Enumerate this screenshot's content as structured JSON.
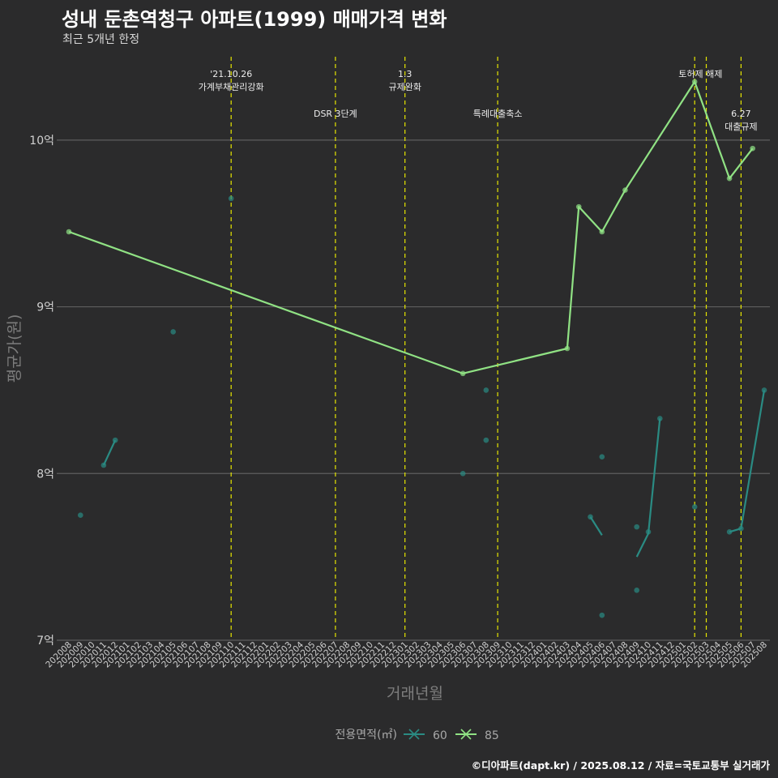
{
  "title": "성내 둔촌역청구 아파트(1999) 매매가격 변화",
  "subtitle": "최근 5개년 한정",
  "footer": "©디아파트(dapt.kr) / 2025.08.12 / 자료=국토교통부 실거래가",
  "chart_data": {
    "type": "line",
    "xlabel": "거래년월",
    "ylabel": "평균가(원)",
    "ylim": [
      7,
      10.5
    ],
    "yticks": [
      {
        "value": 7,
        "label": "7억"
      },
      {
        "value": 8,
        "label": "8억"
      },
      {
        "value": 9,
        "label": "9억"
      },
      {
        "value": 10,
        "label": "10억"
      }
    ],
    "x_start": "2020-08",
    "x_end": "2025-08",
    "categories": [
      "202008",
      "202009",
      "202010",
      "202011",
      "202012",
      "202101",
      "202102",
      "202103",
      "202104",
      "202105",
      "202106",
      "202107",
      "202108",
      "202109",
      "202110",
      "202111",
      "202112",
      "202201",
      "202202",
      "202203",
      "202204",
      "202205",
      "202206",
      "202207",
      "202208",
      "202209",
      "202210",
      "202211",
      "202212",
      "202301",
      "202302",
      "202303",
      "202304",
      "202305",
      "202306",
      "202307",
      "202308",
      "202309",
      "202310",
      "202311",
      "202312",
      "202401",
      "202402",
      "202403",
      "202404",
      "202405",
      "202406",
      "202407",
      "202408",
      "202409",
      "202410",
      "202411",
      "202412",
      "202501",
      "202502",
      "202503",
      "202504",
      "202505",
      "202506",
      "202507",
      "202508"
    ],
    "legend_title": "전용면적(㎡)",
    "legend_position": "bottom",
    "grid": true,
    "series": [
      {
        "name": "60",
        "color": "#2a8b83",
        "lines": [
          [
            [
              "2020-11",
              8.05
            ],
            [
              "2020-12",
              8.2
            ]
          ],
          [
            [
              "2024-05",
              7.74
            ],
            [
              "2024-06",
              7.63
            ]
          ],
          [
            [
              "2024-09",
              7.5
            ],
            [
              "2024-10",
              7.64
            ],
            [
              "2024-11",
              8.33
            ]
          ],
          [
            [
              "2025-05",
              7.65
            ],
            [
              "2025-06",
              7.67
            ],
            [
              "2025-08",
              8.5
            ]
          ]
        ],
        "points": [
          [
            "2020-09",
            7.75
          ],
          [
            "2020-11",
            8.05
          ],
          [
            "2020-12",
            8.2
          ],
          [
            "2021-05",
            8.85
          ],
          [
            "2021-10",
            9.65
          ],
          [
            "2023-06",
            8.0
          ],
          [
            "2023-08",
            8.5
          ],
          [
            "2023-08",
            8.2
          ],
          [
            "2024-05",
            7.74
          ],
          [
            "2024-06",
            8.1
          ],
          [
            "2024-06",
            7.15
          ],
          [
            "2024-09",
            7.68
          ],
          [
            "2024-09",
            7.3
          ],
          [
            "2024-10",
            7.65
          ],
          [
            "2024-11",
            8.33
          ],
          [
            "2025-02",
            7.8
          ],
          [
            "2025-05",
            7.65
          ],
          [
            "2025-06",
            7.67
          ],
          [
            "2025-08",
            8.5
          ]
        ]
      },
      {
        "name": "85",
        "color": "#90e284",
        "lines": [
          [
            [
              "2020-08",
              9.45
            ],
            [
              "2023-06",
              8.6
            ],
            [
              "2024-03",
              8.75
            ],
            [
              "2024-04",
              9.6
            ],
            [
              "2024-06",
              9.45
            ],
            [
              "2024-08",
              9.7
            ],
            [
              "2025-02",
              10.35
            ],
            [
              "2025-05",
              9.77
            ],
            [
              "2025-07",
              9.95
            ]
          ]
        ],
        "points": [
          [
            "2020-08",
            9.45
          ],
          [
            "2023-06",
            8.6
          ],
          [
            "2024-03",
            8.75
          ],
          [
            "2024-04",
            9.6
          ],
          [
            "2024-06",
            9.45
          ],
          [
            "2024-08",
            9.7
          ],
          [
            "2025-02",
            10.35
          ],
          [
            "2025-05",
            9.77
          ],
          [
            "2025-07",
            9.95
          ]
        ]
      }
    ],
    "events": [
      {
        "date": "2021-10",
        "labels": [
          "'21.10.26",
          "가계부채관리강화"
        ],
        "row": 0
      },
      {
        "date": "2022-07",
        "labels": [
          "DSR 3단계"
        ],
        "row": 1
      },
      {
        "date": "2023-01",
        "labels": [
          "1.3",
          "규제완화"
        ],
        "row": 0
      },
      {
        "date": "2023-09",
        "labels": [
          "특례대출축소"
        ],
        "row": 1
      },
      {
        "date": "2025-02",
        "labels": [],
        "row": 0
      },
      {
        "date": "2025-03",
        "labels": [
          "토허제 해제"
        ],
        "row": 0,
        "shift": -1
      },
      {
        "date": "2025-06",
        "labels": [
          "6.27",
          "대출규제"
        ],
        "row": 1
      }
    ]
  }
}
